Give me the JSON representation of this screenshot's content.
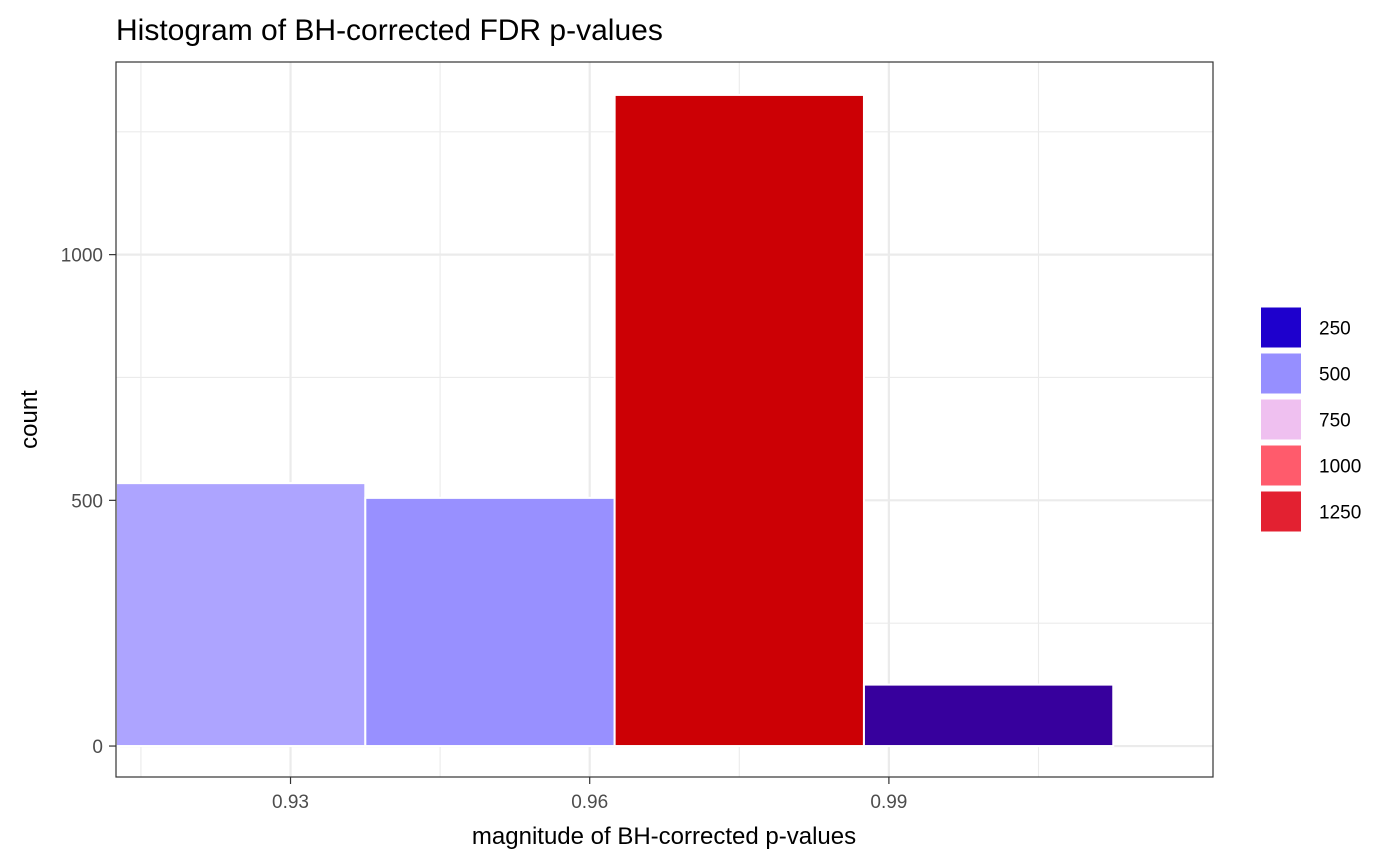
{
  "chart_data": {
    "type": "bar",
    "title": "Histogram of BH-corrected FDR p-values",
    "xlabel": "magnitude of BH-corrected p-values",
    "ylabel": "count",
    "x_ticks": [
      {
        "value": 0.93,
        "label": "0.93"
      },
      {
        "value": 0.96,
        "label": "0.96"
      },
      {
        "value": 0.99,
        "label": "0.99"
      }
    ],
    "y_ticks": [
      {
        "value": 0,
        "label": "0"
      },
      {
        "value": 500,
        "label": "500"
      },
      {
        "value": 1000,
        "label": "1000"
      }
    ],
    "xlim": [
      0.9125,
      1.0225
    ],
    "ylim": [
      -63,
      1392
    ],
    "grid": true,
    "bins": [
      {
        "x_min": 0.9125,
        "x_max": 0.9375,
        "count": 535,
        "color": "#ada4ff"
      },
      {
        "x_min": 0.9375,
        "x_max": 0.9625,
        "count": 505,
        "color": "#9890ff"
      },
      {
        "x_min": 0.9625,
        "x_max": 0.9875,
        "count": 1325,
        "color": "#cc0005"
      },
      {
        "x_min": 0.9875,
        "x_max": 1.0125,
        "count": 125,
        "color": "#37009d"
      }
    ],
    "legend": {
      "position": "right",
      "entries": [
        {
          "label": "250",
          "color": "#1e00cd"
        },
        {
          "label": "500",
          "color": "#968fff"
        },
        {
          "label": "750",
          "color": "#efc0f0"
        },
        {
          "label": "1000",
          "color": "#ff5b6c"
        },
        {
          "label": "1250",
          "color": "#e32131"
        }
      ]
    }
  }
}
